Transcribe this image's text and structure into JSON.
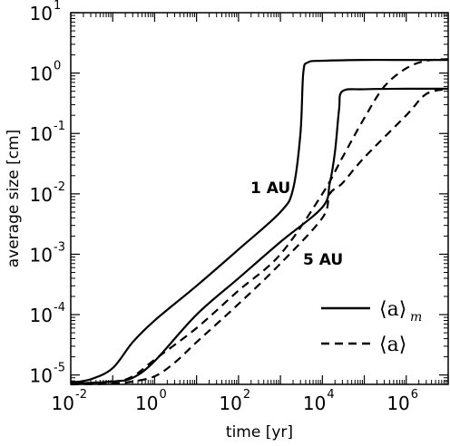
{
  "chart_data": {
    "type": "line",
    "title": "",
    "xlabel": "time [yr]",
    "ylabel": "average size [cm]",
    "xscale": "log",
    "yscale": "log",
    "xlim": [
      0.01,
      10000000
    ],
    "ylim": [
      7e-06,
      10
    ],
    "grid": false,
    "x_ticks": [
      {
        "base": "10",
        "exp": "-2",
        "value": 0.01
      },
      {
        "base": "10",
        "exp": "0",
        "value": 1
      },
      {
        "base": "10",
        "exp": "2",
        "value": 100
      },
      {
        "base": "10",
        "exp": "4",
        "value": 10000
      },
      {
        "base": "10",
        "exp": "6",
        "value": 1000000
      }
    ],
    "y_ticks": [
      {
        "base": "10",
        "exp": "-5",
        "value": 1e-05
      },
      {
        "base": "10",
        "exp": "-4",
        "value": 0.0001
      },
      {
        "base": "10",
        "exp": "-3",
        "value": 0.001
      },
      {
        "base": "10",
        "exp": "-2",
        "value": 0.01
      },
      {
        "base": "10",
        "exp": "-1",
        "value": 0.1
      },
      {
        "base": "10",
        "exp": "0",
        "value": 1
      },
      {
        "base": "10",
        "exp": "1",
        "value": 10
      }
    ],
    "annotations": [
      {
        "text": "1 AU",
        "x": 300,
        "y": 0.012
      },
      {
        "text": "5 AU",
        "x": 2500,
        "y": 0.00045
      }
    ],
    "legend": {
      "placement": "bottom-right",
      "entries": [
        {
          "style": "solid",
          "label": "⟨a⟩",
          "sub": "m"
        },
        {
          "style": "dashed",
          "label": "⟨a⟩",
          "sub": ""
        }
      ]
    },
    "series": [
      {
        "style": "solid",
        "location": "1 AU",
        "x": [
          0.01,
          0.03,
          0.1,
          0.3,
          1,
          10,
          100,
          1000,
          2000,
          3000,
          3500,
          4500,
          10000,
          100000,
          1000000,
          10000000
        ],
        "y": [
          7.5e-06,
          8.5e-06,
          1.3e-05,
          3.5e-05,
          8e-05,
          0.0003,
          0.0012,
          0.005,
          0.012,
          0.1,
          1.0,
          1.5,
          1.6,
          1.65,
          1.65,
          1.65
        ]
      },
      {
        "style": "solid",
        "location": "5 AU",
        "x": [
          0.01,
          0.1,
          0.3,
          1,
          10,
          100,
          1000,
          10000,
          15000,
          20000,
          25000,
          30000,
          100000,
          1000000,
          10000000
        ],
        "y": [
          7.2e-06,
          7.8e-06,
          9e-06,
          1.7e-05,
          0.0001,
          0.0004,
          0.0016,
          0.006,
          0.015,
          0.05,
          0.25,
          0.5,
          0.54,
          0.55,
          0.55
        ]
      },
      {
        "style": "dashed",
        "location": "1 AU",
        "x": [
          0.01,
          0.1,
          0.3,
          1,
          10,
          100,
          1000,
          10000,
          30000,
          100000,
          300000,
          1000000,
          3000000,
          10000000
        ],
        "y": [
          7.2e-06,
          7.7e-06,
          9.5e-06,
          1.8e-05,
          6e-05,
          0.00025,
          0.001,
          0.01,
          0.04,
          0.18,
          0.6,
          1.2,
          1.6,
          1.7
        ]
      },
      {
        "style": "dashed",
        "location": "5 AU",
        "x": [
          0.01,
          0.1,
          0.3,
          1,
          3,
          10,
          100,
          1000,
          10000,
          15000,
          30000,
          100000,
          1000000,
          3000000,
          10000000
        ],
        "y": [
          7e-06,
          7.2e-06,
          7.8e-06,
          9.5e-06,
          1.6e-05,
          3.5e-05,
          0.00015,
          0.0007,
          0.004,
          0.01,
          0.015,
          0.04,
          0.2,
          0.45,
          0.55
        ]
      }
    ]
  }
}
